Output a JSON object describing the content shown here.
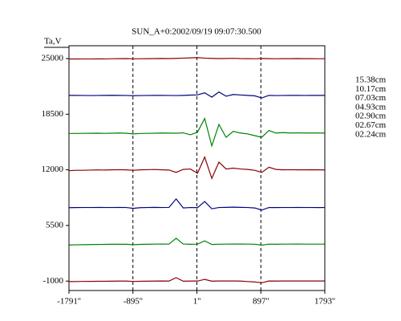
{
  "chart_data": {
    "type": "line",
    "title": "SUN_A+0:2002/09/19 09:07:30.500",
    "y_label": "Ta,V",
    "x": [
      -1790,
      -1690,
      -1590,
      -1490,
      -1390,
      -1290,
      -1190,
      -1090,
      -990,
      -890,
      -790,
      -690,
      -590,
      -490,
      -390,
      -290,
      -190,
      -90,
      10,
      110,
      210,
      310,
      410,
      510,
      610,
      710,
      810,
      910,
      1010,
      1110,
      1210,
      1310,
      1410,
      1510,
      1610,
      1710,
      1790
    ],
    "xlim": [
      -1791,
      1793
    ],
    "xticks": [
      {
        "value": -1791,
        "label": "-1791''"
      },
      {
        "value": -895,
        "label": "-895''"
      },
      {
        "value": 1,
        "label": "1''"
      },
      {
        "value": 897,
        "label": "897''"
      },
      {
        "value": 1793,
        "label": "1793''"
      }
    ],
    "ylim": [
      -2100,
      26500
    ],
    "yticks": [
      -1000,
      5500,
      12000,
      18500,
      25000
    ],
    "grid": true,
    "series": [
      {
        "name": "15.38cm",
        "color": "#8b0000",
        "values": [
          24950,
          24950,
          24960,
          24960,
          24970,
          24960,
          24980,
          24990,
          25000,
          24970,
          24980,
          24990,
          25000,
          25010,
          25000,
          25020,
          25050,
          25080,
          25120,
          25050,
          25020,
          25000,
          25010,
          25030,
          25000,
          24990,
          24980,
          25010,
          24990,
          24980,
          24990,
          24990,
          25000,
          24990,
          24990,
          24980,
          24980
        ]
      },
      {
        "name": "10.17cm",
        "color": "#000080",
        "values": [
          20700,
          20700,
          20690,
          20680,
          20690,
          20700,
          20710,
          20700,
          20690,
          20660,
          20680,
          20690,
          20700,
          20700,
          20690,
          20680,
          20700,
          20730,
          20760,
          21000,
          20500,
          21100,
          20600,
          20800,
          20750,
          20700,
          20650,
          20400,
          20700,
          20680,
          20690,
          20700,
          20700,
          20690,
          20700,
          20700,
          20700
        ]
      },
      {
        "name": "07.03cm",
        "color": "#008000",
        "values": [
          16250,
          16250,
          16260,
          16270,
          16280,
          16260,
          16280,
          16300,
          16280,
          16200,
          16250,
          16260,
          16280,
          16300,
          16290,
          16280,
          16320,
          16100,
          16400,
          18000,
          14800,
          17300,
          15800,
          16500,
          16300,
          16200,
          16000,
          15800,
          16600,
          16300,
          16350,
          16300,
          16320,
          16300,
          16310,
          16300,
          16300
        ]
      },
      {
        "name": "04.93cm",
        "color": "#8b0000",
        "values": [
          11900,
          11950,
          11950,
          11970,
          11990,
          11980,
          12000,
          12020,
          12000,
          11950,
          12000,
          12020,
          12040,
          12000,
          11980,
          11700,
          12050,
          12100,
          11600,
          13500,
          11000,
          12900,
          12100,
          12200,
          12100,
          12050,
          11950,
          11700,
          12300,
          12050,
          12000,
          12020,
          12000,
          12000,
          12010,
          12000,
          11990
        ]
      },
      {
        "name": "02.90cm",
        "color": "#000080",
        "values": [
          7580,
          7590,
          7600,
          7600,
          7610,
          7600,
          7600,
          7610,
          7600,
          7500,
          7580,
          7600,
          7620,
          7600,
          7610,
          8600,
          7550,
          7600,
          7580,
          8300,
          7450,
          7600,
          7620,
          7640,
          7620,
          7600,
          7550,
          7300,
          7600,
          7590,
          7600,
          7600,
          7610,
          7600,
          7600,
          7590,
          7600
        ]
      },
      {
        "name": "02.67cm",
        "color": "#008000",
        "values": [
          3220,
          3240,
          3260,
          3270,
          3280,
          3290,
          3300,
          3300,
          3300,
          3260,
          3290,
          3300,
          3320,
          3330,
          3320,
          4000,
          3330,
          3300,
          3320,
          3700,
          3280,
          3310,
          3320,
          3330,
          3330,
          3320,
          3310,
          3200,
          3320,
          3300,
          3320,
          3320,
          3330,
          3320,
          3320,
          3320,
          3320
        ]
      },
      {
        "name": "02.24cm",
        "color": "#8b0000",
        "values": [
          -1060,
          -1050,
          -1040,
          -1030,
          -1020,
          -1020,
          -1010,
          -1000,
          -1000,
          -1040,
          -1020,
          -1010,
          -1000,
          -990,
          -1000,
          -600,
          -1010,
          -1000,
          -990,
          -800,
          -1010,
          -990,
          -980,
          -990,
          -1000,
          -1050,
          -1100,
          -1200,
          -990,
          -1000,
          -990,
          -990,
          -980,
          -990,
          -990,
          -990,
          -990
        ]
      }
    ]
  }
}
